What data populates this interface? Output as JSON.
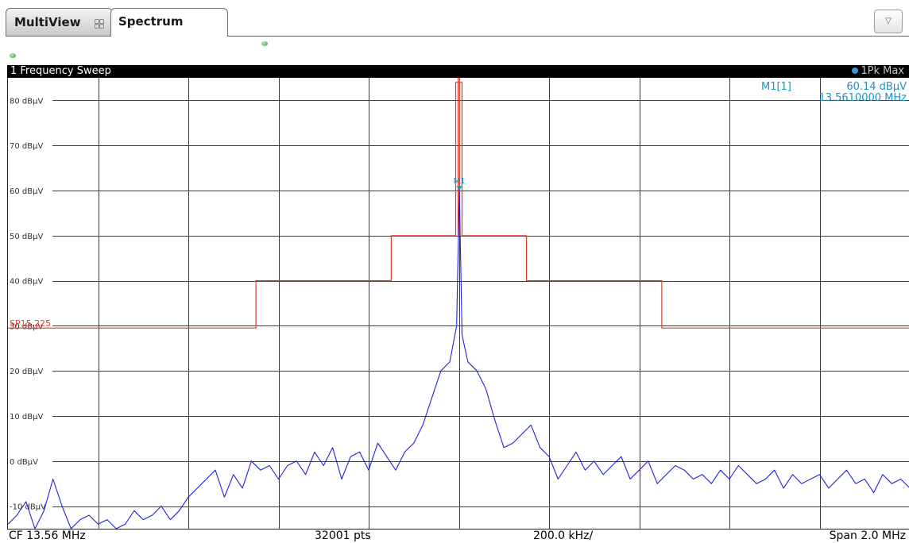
{
  "tabs": [
    {
      "label": "MultiView",
      "icon": "multiview-grid-icon",
      "active": false
    },
    {
      "label": "Spectrum",
      "active": true
    }
  ],
  "dropdown": {
    "icon": "triangle-down-icon",
    "glyph": "▽"
  },
  "window": {
    "title": "1 Frequency Sweep",
    "trace_badge": "1Pk Max",
    "trace_dot_color": "#3a9ad9"
  },
  "marker": {
    "label": "M1",
    "readout_name": "M1[1]",
    "readout_level": "60.14 dBµV",
    "readout_freq": "13.5610000 MHz",
    "x_mhz": 13.561,
    "y_dbuv": 60.14
  },
  "limit_line": {
    "name": "SP15.225",
    "color": "#d9402b",
    "segments": [
      {
        "x_mhz": [
          12.56,
          13.11
        ],
        "dbuv": 29.5
      },
      {
        "x_mhz": [
          13.11,
          13.41
        ],
        "dbuv": 40
      },
      {
        "x_mhz": [
          13.41,
          13.553
        ],
        "dbuv": 50
      },
      {
        "x_mhz": [
          13.553,
          13.567
        ],
        "dbuv": 84
      },
      {
        "x_mhz": [
          13.567,
          13.71
        ],
        "dbuv": 50
      },
      {
        "x_mhz": [
          13.71,
          14.01
        ],
        "dbuv": 40
      },
      {
        "x_mhz": [
          14.01,
          14.56
        ],
        "dbuv": 29.5
      }
    ]
  },
  "footer": {
    "cf": "CF 13.56 MHz",
    "points": "32001 pts",
    "per_div": "200.0 kHz/",
    "span": "Span 2.0 MHz"
  },
  "chart_data": {
    "type": "line",
    "title": "1 Frequency Sweep",
    "xlabel": "",
    "ylabel": "",
    "x_range_mhz": [
      12.56,
      14.56
    ],
    "ylim": [
      -15,
      85
    ],
    "y_ticks": [
      {
        "value": 80,
        "label": "80 dBµV"
      },
      {
        "value": 70,
        "label": "70 dBµV"
      },
      {
        "value": 60,
        "label": "60 dBµV"
      },
      {
        "value": 50,
        "label": "50 dBµV"
      },
      {
        "value": 40,
        "label": "40 dBµV"
      },
      {
        "value": 30,
        "label": "30 dBµV"
      },
      {
        "value": 20,
        "label": "20 dBµV"
      },
      {
        "value": 10,
        "label": "10 dBµV"
      },
      {
        "value": 0,
        "label": "0 dBµV"
      },
      {
        "value": -10,
        "label": "-10 dBµV"
      }
    ],
    "x_divisions": 10,
    "grid": true,
    "series": [
      {
        "color": "#1f22e0",
        "x_mhz": [
          12.56,
          12.58,
          12.6,
          12.62,
          12.64,
          12.66,
          12.68,
          12.7,
          12.72,
          12.74,
          12.76,
          12.78,
          12.8,
          12.82,
          12.84,
          12.86,
          12.88,
          12.9,
          12.92,
          12.94,
          12.96,
          12.98,
          13.0,
          13.02,
          13.04,
          13.06,
          13.08,
          13.1,
          13.12,
          13.14,
          13.16,
          13.18,
          13.2,
          13.22,
          13.24,
          13.26,
          13.28,
          13.3,
          13.32,
          13.34,
          13.36,
          13.38,
          13.4,
          13.42,
          13.44,
          13.46,
          13.48,
          13.5,
          13.52,
          13.54,
          13.555,
          13.561,
          13.567,
          13.58,
          13.6,
          13.62,
          13.64,
          13.66,
          13.68,
          13.7,
          13.72,
          13.74,
          13.76,
          13.78,
          13.8,
          13.82,
          13.84,
          13.86,
          13.88,
          13.9,
          13.92,
          13.94,
          13.96,
          13.98,
          14.0,
          14.02,
          14.04,
          14.06,
          14.08,
          14.1,
          14.12,
          14.14,
          14.16,
          14.18,
          14.2,
          14.22,
          14.24,
          14.26,
          14.28,
          14.3,
          14.32,
          14.34,
          14.36,
          14.38,
          14.4,
          14.42,
          14.44,
          14.46,
          14.48,
          14.5,
          14.52,
          14.54,
          14.56
        ],
        "y_dbuv": [
          -14,
          -12,
          -9,
          -15,
          -11,
          -4,
          -10,
          -15,
          -13,
          -12,
          -14,
          -13,
          -15,
          -14,
          -11,
          -13,
          -12,
          -10,
          -13,
          -11,
          -8,
          -6,
          -4,
          -2,
          -8,
          -3,
          -6,
          0,
          -2,
          -1,
          -4,
          -1,
          0,
          -3,
          2,
          -1,
          3,
          -4,
          1,
          2,
          -2,
          4,
          1,
          -2,
          2,
          4,
          8,
          14,
          20,
          22,
          30,
          60.14,
          28,
          22,
          20,
          16,
          9,
          3,
          4,
          6,
          8,
          3,
          1,
          -4,
          -1,
          2,
          -2,
          0,
          -3,
          -1,
          1,
          -4,
          -2,
          0,
          -5,
          -3,
          -1,
          -2,
          -4,
          -3,
          -5,
          -2,
          -4,
          -1,
          -3,
          -5,
          -4,
          -2,
          -6,
          -3,
          -5,
          -4,
          -3,
          -6,
          -4,
          -2,
          -5,
          -4,
          -7,
          -3,
          -5,
          -4,
          -6
        ]
      }
    ]
  }
}
